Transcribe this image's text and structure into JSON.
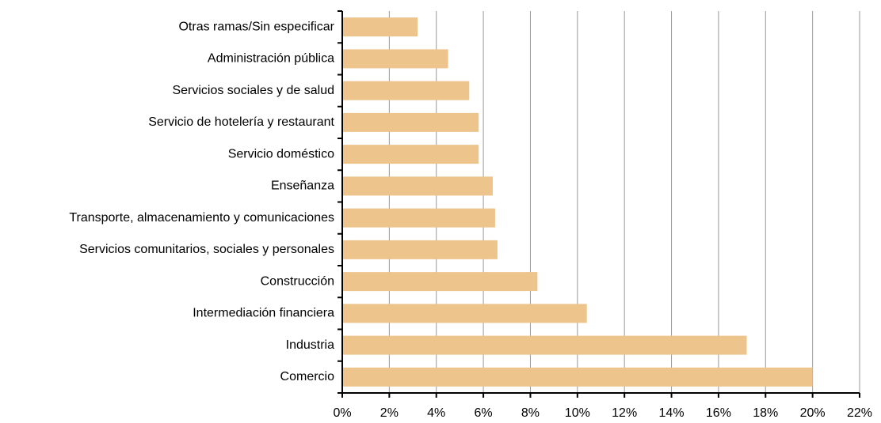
{
  "chart_data": {
    "type": "hbar",
    "categories": [
      "Otras ramas/Sin especificar",
      "Administración pública",
      "Servicios sociales y de salud",
      "Servicio de hotelería y restaurant",
      "Servicio doméstico",
      "Enseñanza",
      "Transporte, almacenamiento y comunicaciones",
      "Servicios comunitarios, sociales y personales",
      "Construcción",
      "Intermediación financiera",
      "Industria",
      "Comercio"
    ],
    "values": [
      3.2,
      4.5,
      5.4,
      5.8,
      5.8,
      6.4,
      6.5,
      6.6,
      8.3,
      10.4,
      17.2,
      20.0
    ],
    "color": "#edc48c",
    "xlim": [
      0,
      22
    ],
    "xticks": [
      {
        "value": 0,
        "label": "0%"
      },
      {
        "value": 2,
        "label": "2%"
      },
      {
        "value": 4,
        "label": "4%"
      },
      {
        "value": 6,
        "label": "6%"
      },
      {
        "value": 8,
        "label": "8%"
      },
      {
        "value": 10,
        "label": "10%"
      },
      {
        "value": 12,
        "label": "12%"
      },
      {
        "value": 14,
        "label": "14%"
      },
      {
        "value": 16,
        "label": "16%"
      },
      {
        "value": 18,
        "label": "18%"
      },
      {
        "value": 20,
        "label": "20%"
      },
      {
        "value": 22,
        "label": "22%"
      }
    ],
    "grid": true
  }
}
